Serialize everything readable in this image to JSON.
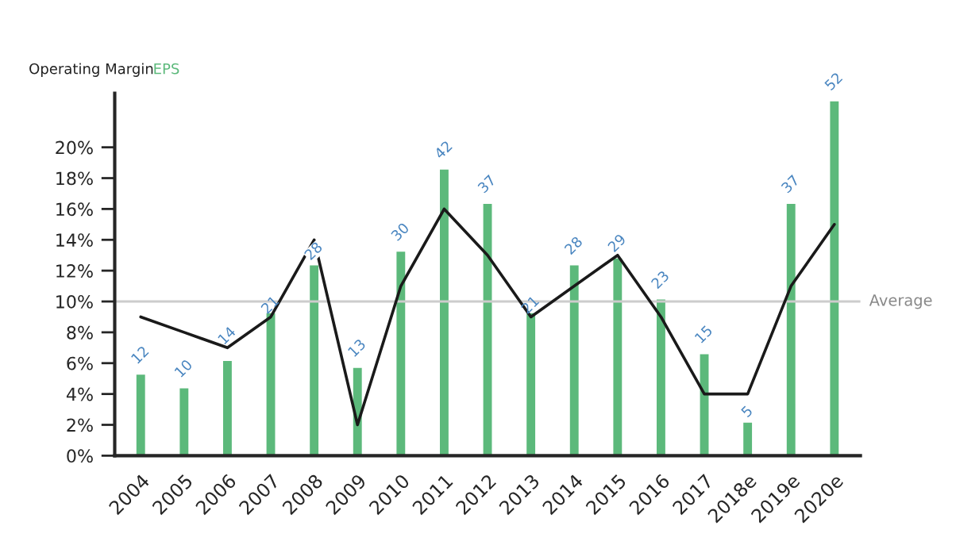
{
  "chart_data": {
    "type": "bar",
    "categories": [
      "2004",
      "2005",
      "2006",
      "2007",
      "2008",
      "2009",
      "2010",
      "2011",
      "2012",
      "2013",
      "2014",
      "2015",
      "2016",
      "2017",
      "2018e",
      "2019e",
      "2020e"
    ],
    "ylabel": "Operating Margin",
    "y2label": "EPS",
    "series": [
      {
        "axis": "y2",
        "color": "#5cb97b",
        "values": [
          12,
          10,
          14,
          21,
          28,
          13,
          30,
          42,
          37,
          21,
          28,
          29,
          23,
          15,
          5,
          37,
          52
        ],
        "value_labels": [
          "12",
          "10",
          "14",
          "21",
          "28",
          "13",
          "30",
          "42",
          "37",
          "21",
          "28",
          "29",
          "23",
          "15",
          "5",
          "37",
          "52"
        ]
      },
      {
        "type": "line",
        "color": "#1a1a1a",
        "values": [
          9,
          8,
          7,
          9,
          14,
          2,
          11,
          16,
          13,
          9,
          11,
          13,
          9,
          4,
          4,
          11,
          15
        ]
      }
    ],
    "ylim": [
      0,
      23.5
    ],
    "y2lim": [
      0,
      53
    ],
    "yticks": [
      {
        "value": 0,
        "label": "0%"
      },
      {
        "value": 2,
        "label": "2%"
      },
      {
        "value": 4,
        "label": "4%"
      },
      {
        "value": 6,
        "label": "6%"
      },
      {
        "value": 8,
        "label": "8%"
      },
      {
        "value": 10,
        "label": "10%"
      },
      {
        "value": 12,
        "label": "12%"
      },
      {
        "value": 14,
        "label": "14%"
      },
      {
        "value": 16,
        "label": "16%"
      },
      {
        "value": 18,
        "label": "18%"
      },
      {
        "value": 20,
        "label": "20%"
      }
    ],
    "ref_lines": [
      {
        "axis": "y",
        "value": 10,
        "label": "Average",
        "color": "#cccccc"
      }
    ],
    "tick_labels": [
      "x",
      "y"
    ],
    "grid": false,
    "legend": false
  }
}
